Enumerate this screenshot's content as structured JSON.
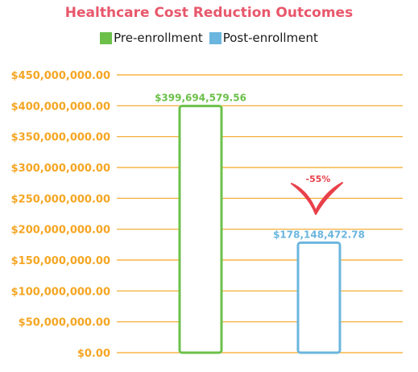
{
  "chart_data": {
    "type": "bar",
    "title": "Healthcare Cost Reduction Outcomes",
    "categories": [
      "Pre-enrollment",
      "Post-enrollment"
    ],
    "values": [
      399694579.56,
      178148472.78
    ],
    "value_labels": [
      "$399,694,579.56",
      "$178,148,472.78"
    ],
    "legend": [
      "Pre-enrollment",
      "Post-enrollment"
    ],
    "legend_position": "top",
    "colors": {
      "pre": "#6cc04a",
      "post": "#6bb6de",
      "title": "#e8576b",
      "ticks": "#f5a623",
      "grid": "#f5a623",
      "annotation": "#e8414b"
    },
    "yticks": [
      "$0.00",
      "$50,000,000.00",
      "$100,000,000.00",
      "$150,000,000.00",
      "$200,000,000.00",
      "$250,000,000.00",
      "$300,000,000.00",
      "$350,000,000.00",
      "$400,000,000.00",
      "$450,000,000.00"
    ],
    "ylim": [
      0,
      450000000
    ],
    "grid": true,
    "annotation": "-55%",
    "xlabel": "",
    "ylabel": ""
  }
}
